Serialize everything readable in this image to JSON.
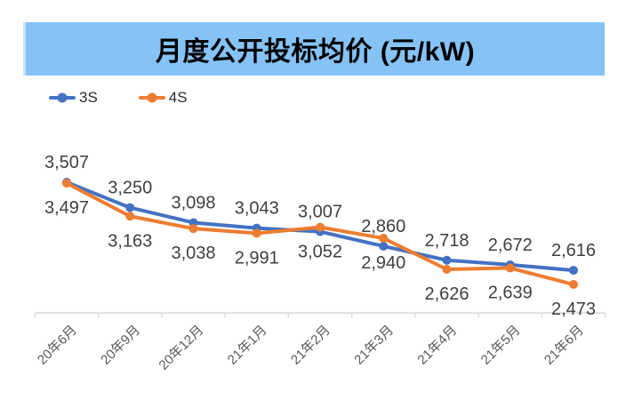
{
  "title": {
    "text": "月度公开投标均价 (元/kW)",
    "bg_color": "#85C3F7",
    "text_color": "#000000"
  },
  "legend": {
    "items": [
      {
        "label": "3S",
        "color": "#4472C4"
      },
      {
        "label": "4S",
        "color": "#ED7D31"
      }
    ]
  },
  "chart_data": {
    "type": "line",
    "title": "月度公开投标均价 (元/kW)",
    "xlabel": "",
    "ylabel": "",
    "grid": false,
    "y_axis_visible": false,
    "legend_position": "top-left",
    "categories": [
      "20年6月",
      "20年9月",
      "20年12月",
      "21年1月",
      "21年2月",
      "21年3月",
      "21年4月",
      "21年5月",
      "21年6月"
    ],
    "series": [
      {
        "name": "3S",
        "color": "#4472C4",
        "label_position": "above",
        "values": [
          3507,
          3250,
          3098,
          3043,
          3007,
          2860,
          2718,
          2672,
          2616
        ],
        "labels": [
          "3,507",
          "3,250",
          "3,098",
          "3,043",
          "3,007",
          "2,860",
          "2,718",
          "2,672",
          "2,616"
        ]
      },
      {
        "name": "4S",
        "color": "#ED7D31",
        "label_position": "below",
        "values": [
          3497,
          3163,
          3038,
          2991,
          3052,
          2940,
          2626,
          2639,
          2473
        ],
        "labels": [
          "3,497",
          "3,163",
          "3,038",
          "2,991",
          "3,052",
          "2,940",
          "2,626",
          "2,639",
          "2,473"
        ]
      }
    ],
    "colors": {
      "axis_line": "#D9D9D9",
      "tick_label": "#595959",
      "data_label": "#404040"
    }
  }
}
